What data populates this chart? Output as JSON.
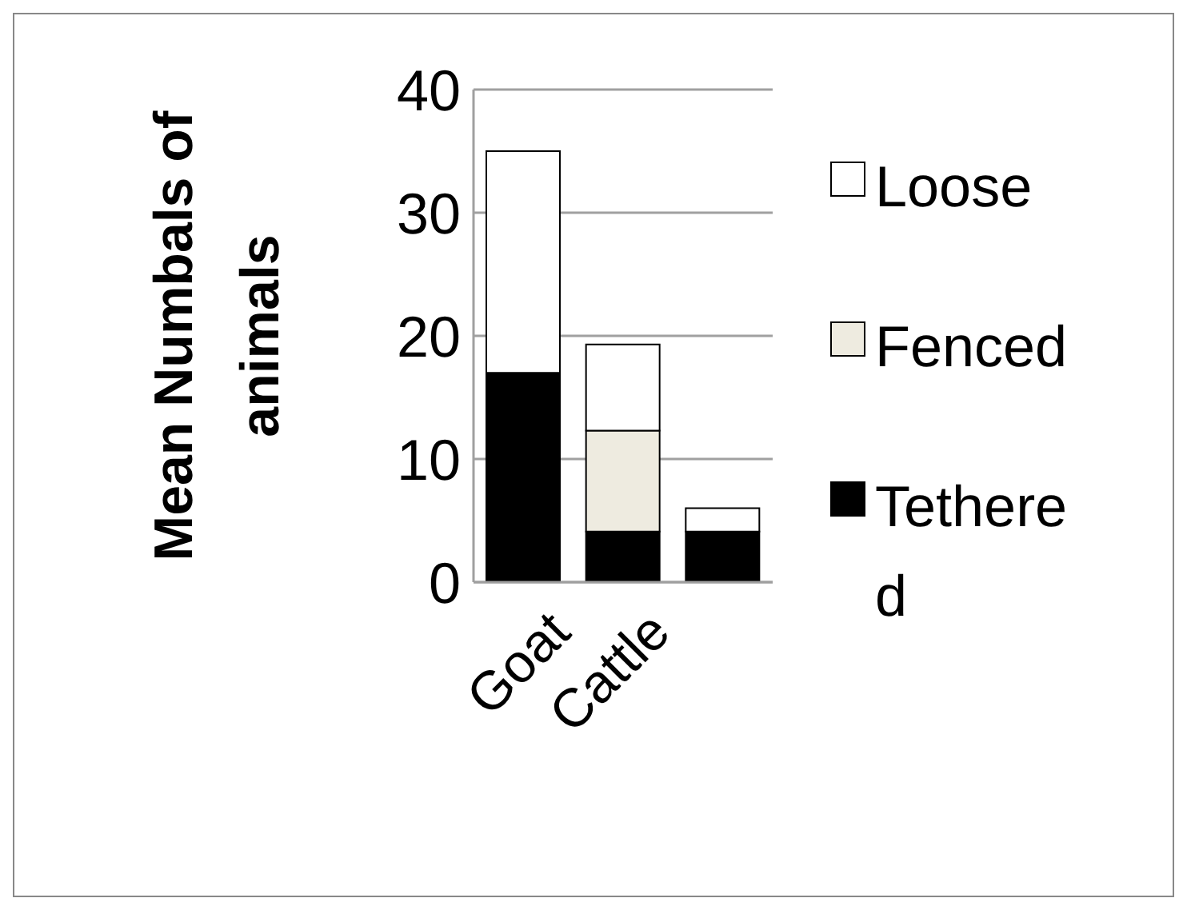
{
  "chart_data": {
    "type": "bar",
    "stacked": true,
    "ylabel": "Mean Numbals of animals",
    "categories": [
      "Goat",
      "Cattle",
      null
    ],
    "series": [
      {
        "name": "Tethered",
        "color": "#000000",
        "values": [
          17,
          4.1,
          4.1
        ]
      },
      {
        "name": "Fenced",
        "color": "#eeebe0",
        "values": [
          0,
          8.2,
          0
        ]
      },
      {
        "name": "Loose",
        "color": "#ffffff",
        "values": [
          18,
          7,
          1.9
        ]
      }
    ],
    "ylim": [
      0,
      40
    ],
    "yticks": [
      0,
      10,
      20,
      30,
      40
    ],
    "grid": "y",
    "legend": "right"
  }
}
